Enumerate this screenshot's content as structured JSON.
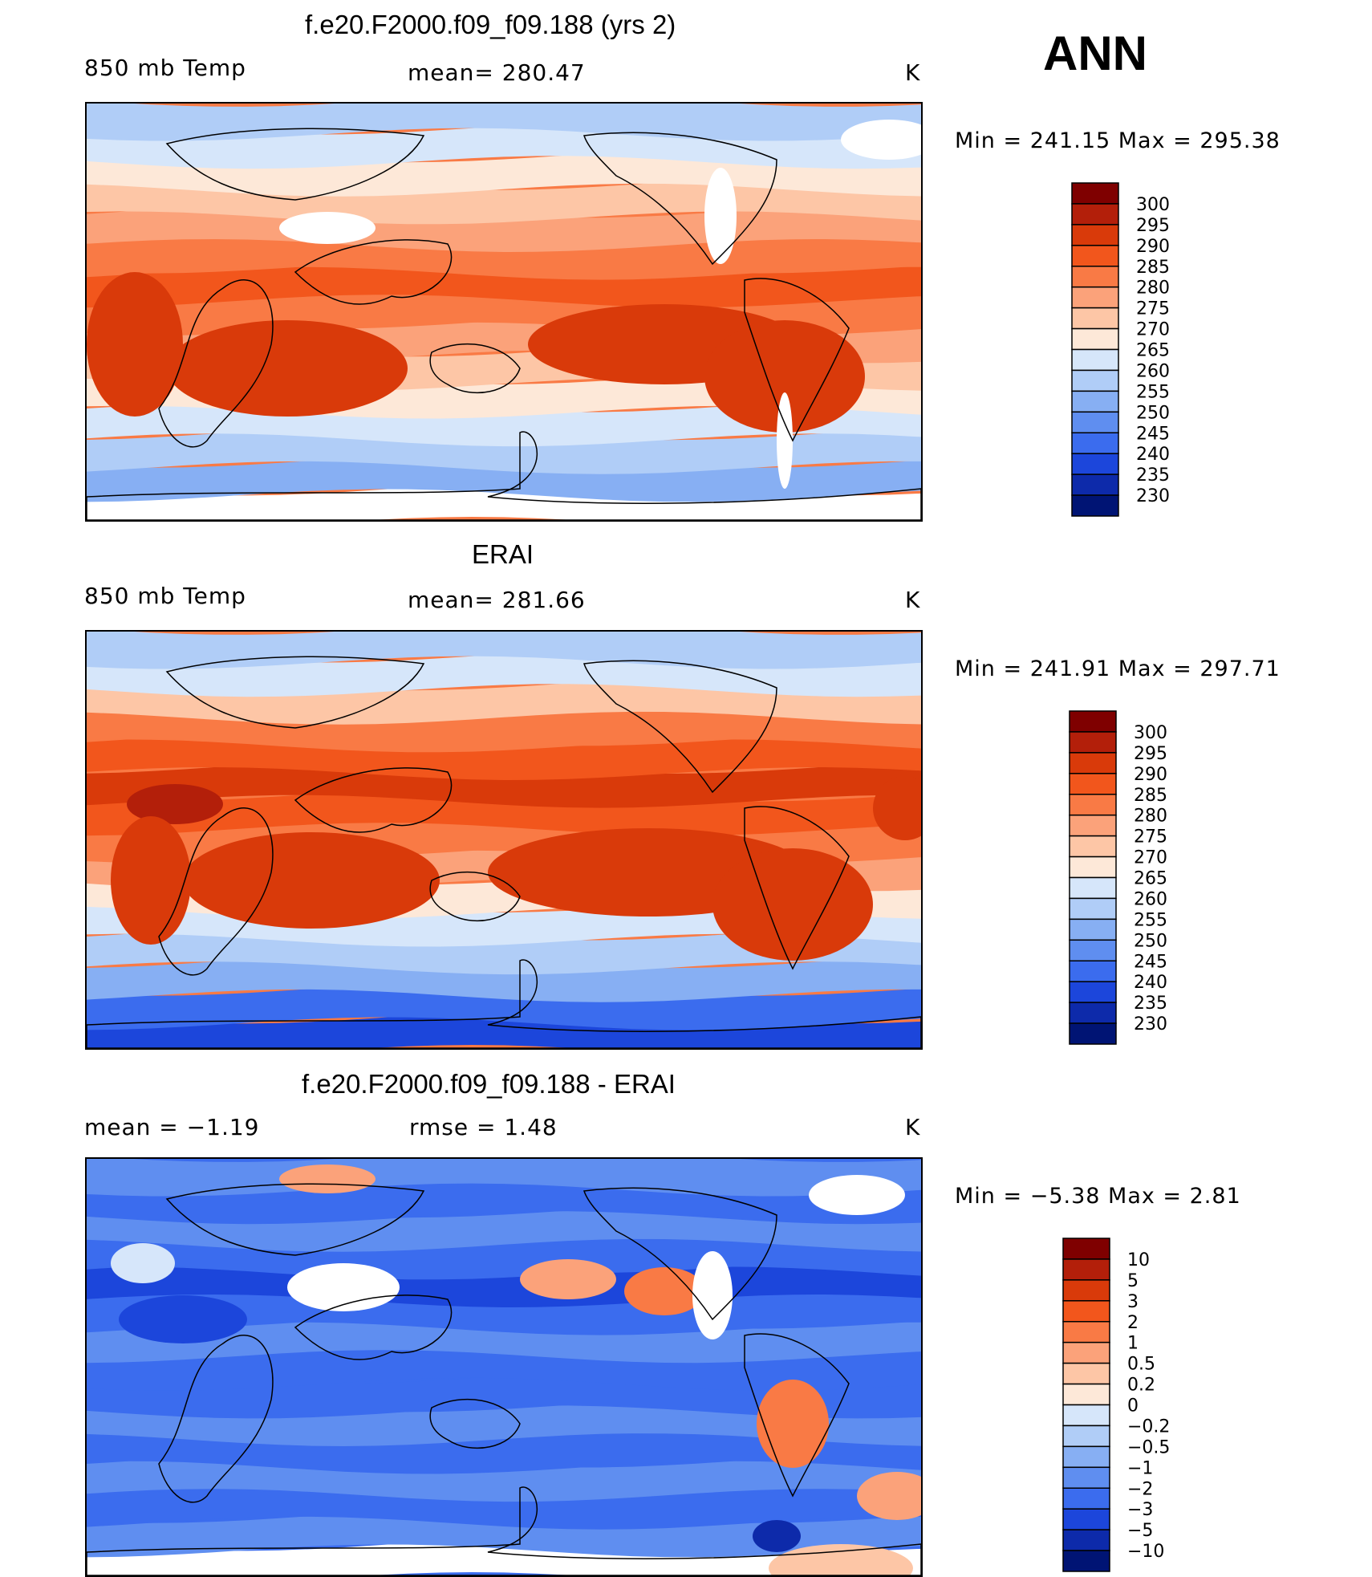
{
  "season": "ANN",
  "units": "K",
  "panels": [
    {
      "id": "model",
      "title": "f.e20.F2000.f09_f09.188 (yrs 2)",
      "left_label": "850 mb Temp",
      "center_label": "mean= 280.47",
      "units": "K",
      "min_max": "Min  =  241.15  Max  =  295.38",
      "colorbar_levels": [
        "300",
        "295",
        "290",
        "285",
        "280",
        "275",
        "270",
        "265",
        "260",
        "255",
        "250",
        "245",
        "240",
        "235",
        "230"
      ]
    },
    {
      "id": "obs",
      "title": "ERAI",
      "left_label": "850 mb Temp",
      "center_label": "mean= 281.66",
      "units": "K",
      "min_max": "Min  =  241.91  Max  =  297.71",
      "colorbar_levels": [
        "300",
        "295",
        "290",
        "285",
        "280",
        "275",
        "270",
        "265",
        "260",
        "255",
        "250",
        "245",
        "240",
        "235",
        "230"
      ]
    },
    {
      "id": "diff",
      "title": "f.e20.F2000.f09_f09.188 - ERAI",
      "left_label": "mean =   −1.19",
      "center_label": "rmse =    1.48",
      "units": "K",
      "min_max": "Min  =   −5.38  Max  =    2.81",
      "colorbar_levels": [
        "10",
        "5",
        "3",
        "2",
        "1",
        "0.5",
        "0.2",
        "0",
        "−0.2",
        "−0.5",
        "−1",
        "−2",
        "−3",
        "−5",
        "−10"
      ]
    }
  ],
  "colors": {
    "temp_scale": [
      "#7f0000",
      "#b31f0a",
      "#d93a0a",
      "#f2561c",
      "#f97a45",
      "#fba27a",
      "#fdc6a6",
      "#fde8d8",
      "#d6e6fa",
      "#b0cdf7",
      "#87aff3",
      "#5f8ef0",
      "#3b6cee",
      "#1c46db",
      "#0d2aaa",
      "#001474"
    ],
    "diff_scale": [
      "#7f0000",
      "#b31f0a",
      "#d93a0a",
      "#f2561c",
      "#f97a45",
      "#fba27a",
      "#fdc6a6",
      "#fde8d8",
      "#d6e6fa",
      "#b0cdf7",
      "#87aff3",
      "#5f8ef0",
      "#3b6cee",
      "#1c46db",
      "#0d2aaa",
      "#001474"
    ],
    "missing": "#ffffff",
    "coast": "#000000"
  },
  "fields": {
    "model": {
      "band_colors": [
        "#ffffff",
        "#87aff3",
        "#b0cdf7",
        "#d6e6fa",
        "#fde8d8",
        "#fdc6a6",
        "#fba27a",
        "#f97a45",
        "#f2561c",
        "#f97a45",
        "#fba27a",
        "#fdc6a6",
        "#fde8d8",
        "#d6e6fa",
        "#b0cdf7"
      ],
      "blob_colors": [
        "#d93a0a",
        "#d93a0a",
        "#d93a0a",
        "#d93a0a",
        "#ffffff",
        "#ffffff",
        "#ffffff",
        "#ffffff"
      ]
    },
    "obs": {
      "band_colors": [
        "#1c46db",
        "#3b6cee",
        "#87aff3",
        "#b0cdf7",
        "#d6e6fa",
        "#fde8d8",
        "#fba27a",
        "#f97a45",
        "#f2561c",
        "#d93a0a",
        "#f2561c",
        "#f97a45",
        "#fdc6a6",
        "#d6e6fa",
        "#b0cdf7"
      ],
      "blob_colors": [
        "#b31f0a",
        "#d93a0a",
        "#d93a0a",
        "#d93a0a",
        "#d93a0a",
        "#d93a0a"
      ]
    },
    "diff": {
      "band_colors": [
        "#ffffff",
        "#5f8ef0",
        "#3b6cee",
        "#5f8ef0",
        "#3b6cee",
        "#5f8ef0",
        "#3b6cee",
        "#3b6cee",
        "#5f8ef0",
        "#3b6cee",
        "#1c46db",
        "#3b6cee",
        "#5f8ef0",
        "#3b6cee",
        "#5f8ef0"
      ],
      "blob_colors": [
        "#ffffff",
        "#ffffff",
        "#fba27a",
        "#f97a45",
        "#fba27a",
        "#fdc6a6",
        "#fba27a",
        "#f97a45",
        "#d6e6fa",
        "#ffffff",
        "#1c46db",
        "#0d2aaa"
      ]
    }
  }
}
